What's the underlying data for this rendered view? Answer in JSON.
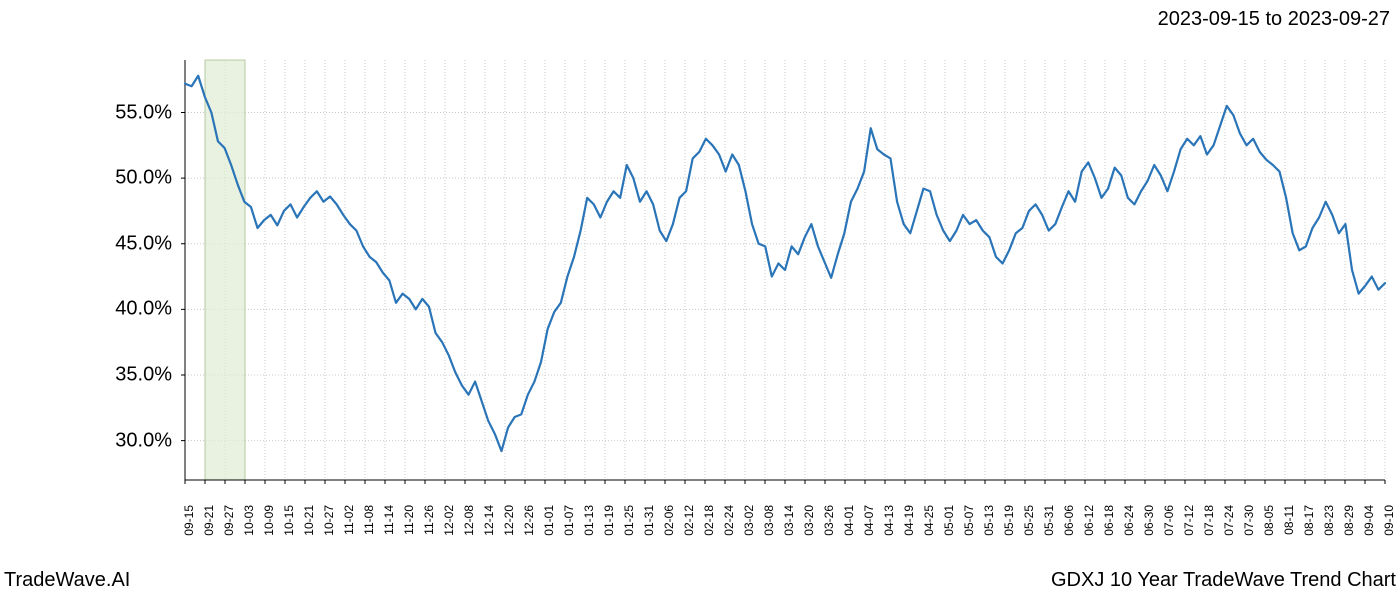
{
  "header": {
    "date_range": "2023-09-15 to 2023-09-27"
  },
  "footer": {
    "brand": "TradeWave.AI",
    "chart_title": "GDXJ 10 Year TradeWave Trend Chart"
  },
  "chart": {
    "type": "line",
    "line_color": "#2a74b8",
    "line_width": 2.2,
    "background_color": "#ffffff",
    "grid_color": "#c8c8c8",
    "grid_dash": "1,2",
    "axis_color": "#000000",
    "highlight_band": {
      "x_start_index": 1,
      "x_end_index": 3,
      "fill": "#e0ecd3",
      "stroke": "#a8c090"
    },
    "ylim": [
      27,
      59
    ],
    "y_ticks": [
      30,
      35,
      40,
      45,
      50,
      55
    ],
    "y_tick_labels": [
      "30.0%",
      "35.0%",
      "40.0%",
      "45.0%",
      "50.0%",
      "55.0%"
    ],
    "x_count": 61,
    "x_tick_labels": [
      "09-15",
      "09-21",
      "09-27",
      "10-03",
      "10-09",
      "10-15",
      "10-21",
      "10-27",
      "11-02",
      "11-08",
      "11-14",
      "11-20",
      "11-26",
      "12-02",
      "12-08",
      "12-14",
      "12-20",
      "12-26",
      "01-01",
      "01-07",
      "01-13",
      "01-19",
      "01-25",
      "01-31",
      "02-06",
      "02-12",
      "02-18",
      "02-24",
      "03-02",
      "03-08",
      "03-14",
      "03-20",
      "03-26",
      "04-01",
      "04-07",
      "04-13",
      "04-19",
      "04-25",
      "05-01",
      "05-07",
      "05-13",
      "05-19",
      "05-25",
      "05-31",
      "06-06",
      "06-12",
      "06-18",
      "06-24",
      "06-30",
      "07-06",
      "07-12",
      "07-18",
      "07-24",
      "07-30",
      "08-05",
      "08-11",
      "08-17",
      "08-23",
      "08-29",
      "09-04",
      "09-10"
    ],
    "data_points_per_tick": 3,
    "data": [
      57.2,
      57.0,
      57.8,
      56.2,
      55.0,
      52.8,
      52.3,
      51.0,
      49.5,
      48.2,
      47.8,
      46.2,
      46.8,
      47.2,
      46.4,
      47.5,
      48.0,
      47.0,
      47.8,
      48.5,
      49.0,
      48.2,
      48.6,
      48.0,
      47.2,
      46.5,
      46.0,
      44.8,
      44.0,
      43.6,
      42.8,
      42.2,
      40.5,
      41.2,
      40.8,
      40.0,
      40.8,
      40.2,
      38.2,
      37.5,
      36.5,
      35.2,
      34.2,
      33.5,
      34.5,
      33.0,
      31.5,
      30.5,
      29.2,
      31.0,
      31.8,
      32.0,
      33.5,
      34.5,
      36.0,
      38.5,
      39.8,
      40.5,
      42.5,
      44.0,
      46.0,
      48.5,
      48.0,
      47.0,
      48.2,
      49.0,
      48.5,
      51.0,
      50.0,
      48.2,
      49.0,
      48.0,
      46.0,
      45.2,
      46.5,
      48.5,
      49.0,
      51.5,
      52.0,
      53.0,
      52.5,
      51.8,
      50.5,
      51.8,
      51.0,
      49.0,
      46.5,
      45.0,
      44.8,
      42.5,
      43.5,
      43.0,
      44.8,
      44.2,
      45.5,
      46.5,
      44.8,
      43.6,
      42.4,
      44.2,
      45.8,
      48.2,
      49.2,
      50.5,
      53.8,
      52.2,
      51.8,
      51.5,
      48.2,
      46.5,
      45.8,
      47.5,
      49.2,
      49.0,
      47.2,
      46.0,
      45.2,
      46.0,
      47.2,
      46.5,
      46.8,
      46.0,
      45.5,
      44.0,
      43.5,
      44.5,
      45.8,
      46.2,
      47.5,
      48.0,
      47.2,
      46.0,
      46.5,
      47.8,
      49.0,
      48.2,
      50.5,
      51.2,
      50.0,
      48.5,
      49.2,
      50.8,
      50.2,
      48.5,
      48.0,
      49.0,
      49.8,
      51.0,
      50.2,
      49.0,
      50.5,
      52.2,
      53.0,
      52.5,
      53.2,
      51.8,
      52.5,
      54.0,
      55.5,
      54.8,
      53.4,
      52.5,
      53.0,
      52.0,
      51.4,
      51.0,
      50.5,
      48.5,
      45.8,
      44.5,
      44.8,
      46.2,
      47.0,
      48.2,
      47.2,
      45.8,
      46.5,
      43.0,
      41.2,
      41.8,
      42.5,
      41.5,
      42.0
    ]
  }
}
